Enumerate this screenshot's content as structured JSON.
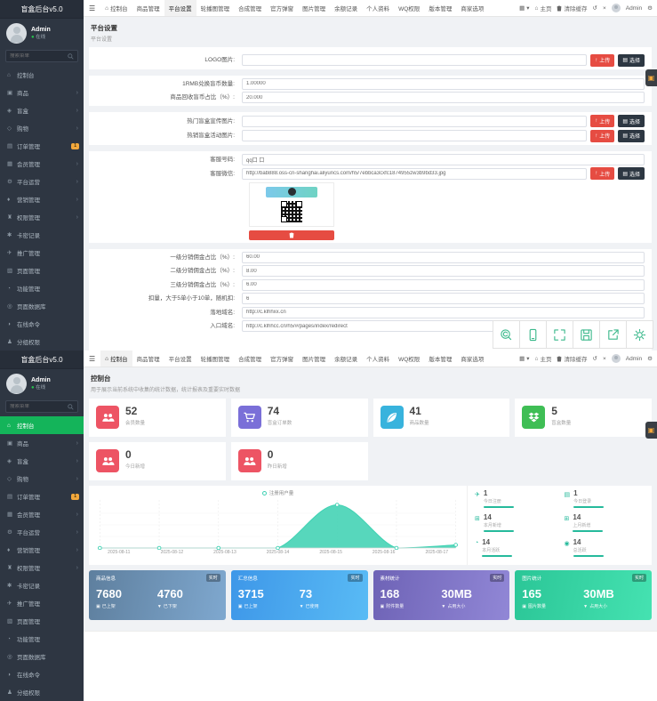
{
  "app": {
    "logo": "盲盒后台v5.0",
    "user_name": "Admin",
    "user_status": "在线",
    "search_placeholder": "搜索菜单"
  },
  "sidebar_items": [
    {
      "label": "控制台",
      "icon": "home-icon"
    },
    {
      "label": "商品",
      "icon": "goods-icon",
      "arrow": true
    },
    {
      "label": "盲盒",
      "icon": "blindbox-icon",
      "arrow": true
    },
    {
      "label": "购物",
      "icon": "shop-icon",
      "arrow": true
    },
    {
      "label": "订单管理",
      "icon": "order-icon",
      "badge": "1"
    },
    {
      "label": "会员管理",
      "icon": "members-icon",
      "arrow": true
    },
    {
      "label": "平台运营",
      "icon": "operation-icon",
      "arrow": true
    },
    {
      "label": "营销管理",
      "icon": "marketing-icon",
      "arrow": true
    },
    {
      "label": "权限管理",
      "icon": "auth-icon",
      "arrow": true
    },
    {
      "label": "卡密记录",
      "icon": "records-icon"
    },
    {
      "label": "推广管理",
      "icon": "promotion-icon"
    },
    {
      "label": "页面管理",
      "icon": "pages-icon"
    },
    {
      "label": "功能管理",
      "icon": "function-icon"
    },
    {
      "label": "页面数据库",
      "icon": "database-icon"
    },
    {
      "label": "在线命令",
      "icon": "command-icon"
    },
    {
      "label": "分组权限",
      "icon": "group-icon"
    }
  ],
  "tabs": [
    "控制台",
    "商品管理",
    "平台设置",
    "轮播图管理",
    "合成管理",
    "官方弹窗",
    "图片管理",
    "余额记录",
    "个人资料",
    "WQ权限",
    "版本管理",
    "商家选项"
  ],
  "topbar_right": {
    "home": "主页",
    "clear_cache": "清除缓存",
    "user": "Admin"
  },
  "settings": {
    "title": "平台设置",
    "subtitle": "平台设置",
    "upload_label": "上传",
    "choose_label": "选择",
    "fields": [
      {
        "type": "upload",
        "label": "LOGO图片:",
        "value": ""
      },
      {
        "type": "gap"
      },
      {
        "type": "text",
        "label": "1RMB兑换盲币数量:",
        "value": "1.00000"
      },
      {
        "type": "text",
        "label": "商品回收盲币占比（%）:",
        "value": "20.000"
      },
      {
        "type": "gap"
      },
      {
        "type": "upload",
        "label": "热门盲盒宣传图片:",
        "value": ""
      },
      {
        "type": "upload",
        "label": "热销盲盒活动图片:",
        "value": ""
      },
      {
        "type": "gap"
      },
      {
        "type": "text",
        "label": "客服号码:",
        "value": "qq口 口"
      },
      {
        "type": "upload",
        "label": "客服微信:",
        "value": "http://bab888.oss-cn-shanghai.aliyuncs.com/h5/7ebbca3cxfc1874955zw3b9bd33.jpg"
      },
      {
        "type": "qr"
      },
      {
        "type": "gap"
      },
      {
        "type": "text",
        "label": "一级分销佣金占比（%）:",
        "value": "60.00"
      },
      {
        "type": "text",
        "label": "二级分销佣金占比（%）:",
        "value": "8.00"
      },
      {
        "type": "text",
        "label": "三级分销佣金占比（%）:",
        "value": "6.00"
      },
      {
        "type": "text",
        "label": "扣量，大于5单小于10单，随机扣:",
        "value": "6"
      },
      {
        "type": "text",
        "label": "落地域名:",
        "value": "http://c.klhhxx.cn"
      },
      {
        "type": "text",
        "label": "入口域名:",
        "value": "http://c.klhhcc.cn/h5/#/pages/index/redirect"
      }
    ]
  },
  "toolbar_buttons": [
    {
      "icon": "preview-icon"
    },
    {
      "icon": "mobile-icon"
    },
    {
      "icon": "fullscreen-icon"
    },
    {
      "icon": "save-icon"
    },
    {
      "icon": "share-icon"
    },
    {
      "icon": "settings-icon"
    }
  ],
  "edge_widget_icon": "qrcode-widget-icon",
  "dashboard": {
    "title": "控制台",
    "subtitle": "用于展示当前系统中收集的统计数据，统计报表及重要实时数据",
    "stats": [
      {
        "value": "52",
        "label": "会员数量",
        "color": "#ed5464",
        "icon": "users-icon"
      },
      {
        "value": "74",
        "label": "盲盒订单数",
        "color": "#7a6fd8",
        "icon": "cart-icon"
      },
      {
        "value": "41",
        "label": "商品数量",
        "color": "#38b3dd",
        "icon": "leaf-icon"
      },
      {
        "value": "5",
        "label": "盲盒数量",
        "color": "#3fbe55",
        "icon": "dropbox-icon"
      }
    ],
    "stats2": [
      {
        "value": "0",
        "label": "今日新增",
        "color": "#ed5464",
        "icon": "users-icon"
      },
      {
        "value": "0",
        "label": "昨日新增",
        "color": "#ed5464",
        "icon": "users-icon"
      }
    ],
    "mini_stats": [
      {
        "value": "1",
        "label": "今日注册",
        "icon": "plane-icon"
      },
      {
        "value": "1",
        "label": "今日登录",
        "icon": "idcard-icon"
      },
      {
        "value": "14",
        "label": "本月新增",
        "icon": "calendar-icon"
      },
      {
        "value": "14",
        "label": "上月新增",
        "icon": "calendar-plus-icon"
      },
      {
        "value": "14",
        "label": "本月活跃",
        "icon": "user-clock-icon"
      },
      {
        "value": "14",
        "label": "总活跃",
        "icon": "user-circle-icon"
      }
    ],
    "gradient_cards": [
      {
        "title": "商品信息",
        "badge": "实时",
        "v1": "7680",
        "l1": "已上架",
        "v2": "4760",
        "l2": "已下架",
        "g1": "#5e7f9e",
        "g2": "#7fa8cf"
      },
      {
        "title": "汇总信息",
        "badge": "实时",
        "v1": "3715",
        "l1": "已上架",
        "v2": "73",
        "l2": "已使用",
        "g1": "#3e97e8",
        "g2": "#59bbf5"
      },
      {
        "title": "素材统计",
        "badge": "实时",
        "v1": "168",
        "l1": "附件数量",
        "v2": "30MB",
        "l2": "占用大小",
        "g1": "#6e63b6",
        "g2": "#9187d6"
      },
      {
        "title": "图片统计",
        "badge": "实时",
        "v1": "165",
        "l1": "图片数量",
        "v2": "30MB",
        "l2": "占用大小",
        "g1": "#2bc697",
        "g2": "#45e2b1"
      }
    ],
    "chart_data": {
      "type": "area",
      "legend": "注册用户量",
      "x": [
        "2025-08-11",
        "2025-08-12",
        "2025-08-13",
        "2025-08-14",
        "2025-08-15",
        "2025-08-16",
        "2025-08-17"
      ],
      "series": [
        {
          "name": "注册用户量",
          "values": [
            0,
            0,
            0,
            0,
            14,
            0,
            1
          ]
        }
      ],
      "color": "#40d2b3",
      "ylim": [
        0,
        15
      ],
      "grid": "vertical-dashed",
      "legend_position": "top-center"
    }
  }
}
